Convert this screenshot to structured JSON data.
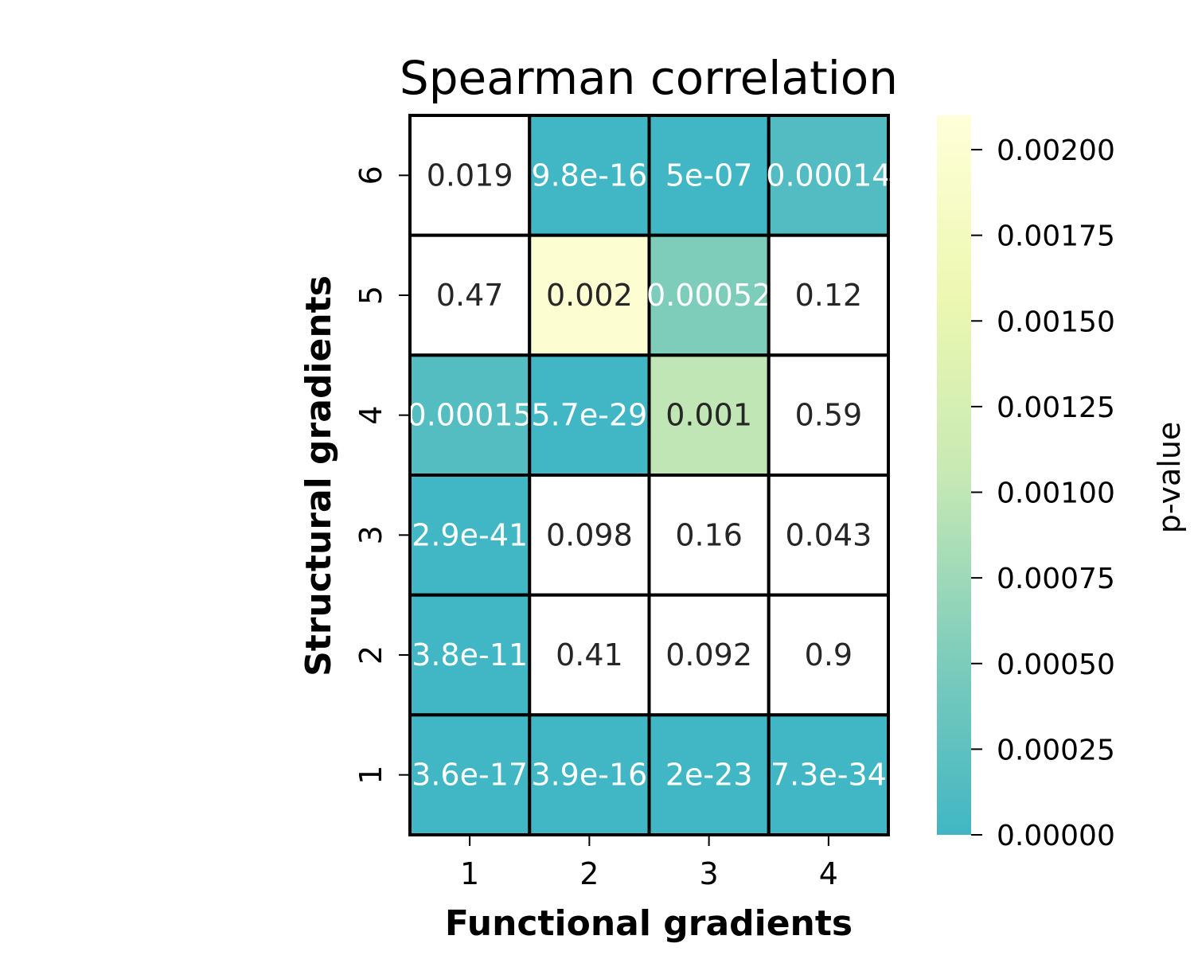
{
  "chart_data": {
    "type": "heatmap",
    "title": "Spearman correlation",
    "xlabel": "Functional gradients",
    "ylabel": "Structural gradients",
    "x_categories": [
      "1",
      "2",
      "3",
      "4"
    ],
    "y_categories": [
      "1",
      "2",
      "3",
      "4",
      "5",
      "6"
    ],
    "cells": [
      {
        "x": "1",
        "y": "6",
        "value": 0.019,
        "label": "0.019"
      },
      {
        "x": "2",
        "y": "6",
        "value": 9.8e-16,
        "label": "9.8e-16"
      },
      {
        "x": "3",
        "y": "6",
        "value": 5e-07,
        "label": "5e-07"
      },
      {
        "x": "4",
        "y": "6",
        "value": 0.00014,
        "label": "0.00014"
      },
      {
        "x": "1",
        "y": "5",
        "value": 0.47,
        "label": "0.47"
      },
      {
        "x": "2",
        "y": "5",
        "value": 0.002,
        "label": "0.002"
      },
      {
        "x": "3",
        "y": "5",
        "value": 0.00052,
        "label": "0.00052"
      },
      {
        "x": "4",
        "y": "5",
        "value": 0.12,
        "label": "0.12"
      },
      {
        "x": "1",
        "y": "4",
        "value": 0.00015,
        "label": "0.00015"
      },
      {
        "x": "2",
        "y": "4",
        "value": 5.7e-29,
        "label": "5.7e-29"
      },
      {
        "x": "3",
        "y": "4",
        "value": 0.001,
        "label": "0.001"
      },
      {
        "x": "4",
        "y": "4",
        "value": 0.59,
        "label": "0.59"
      },
      {
        "x": "1",
        "y": "3",
        "value": 2.9e-41,
        "label": "2.9e-41"
      },
      {
        "x": "2",
        "y": "3",
        "value": 0.098,
        "label": "0.098"
      },
      {
        "x": "3",
        "y": "3",
        "value": 0.16,
        "label": "0.16"
      },
      {
        "x": "4",
        "y": "3",
        "value": 0.043,
        "label": "0.043"
      },
      {
        "x": "1",
        "y": "2",
        "value": 3.8e-11,
        "label": "3.8e-11"
      },
      {
        "x": "2",
        "y": "2",
        "value": 0.41,
        "label": "0.41"
      },
      {
        "x": "3",
        "y": "2",
        "value": 0.092,
        "label": "0.092"
      },
      {
        "x": "4",
        "y": "2",
        "value": 0.9,
        "label": "0.9"
      },
      {
        "x": "1",
        "y": "1",
        "value": 3.6e-17,
        "label": "3.6e-17"
      },
      {
        "x": "2",
        "y": "1",
        "value": 3.9e-16,
        "label": "3.9e-16"
      },
      {
        "x": "3",
        "y": "1",
        "value": 2e-23,
        "label": "2e-23"
      },
      {
        "x": "4",
        "y": "1",
        "value": 7.3e-34,
        "label": "7.3e-34"
      }
    ],
    "colorbar": {
      "label": "p-value",
      "range": [
        0,
        0.0021
      ],
      "ticks": [
        "0.00000",
        "0.00025",
        "0.00050",
        "0.00075",
        "0.00100",
        "0.00125",
        "0.00150",
        "0.00175",
        "0.00200"
      ],
      "masked_above_range_color": "#ffffff",
      "colors": [
        "#41b6c4",
        "#7fcdbb",
        "#c7e9b4",
        "#edf8b1",
        "#ffffd9"
      ]
    },
    "grid_line_color": "#000000",
    "text_color_dark": "#262626",
    "text_color_light": "#ffffff"
  }
}
